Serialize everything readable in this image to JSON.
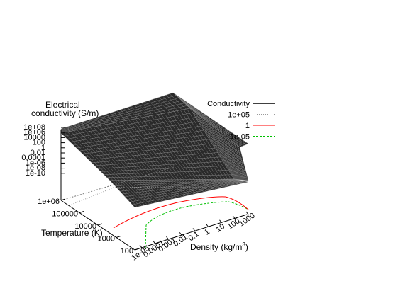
{
  "chart_data": {
    "type": "surface",
    "zlabel_line1": "Electrical",
    "zlabel_line2": "conductivity (S/m)",
    "ylabel": "Temperature (K)",
    "xlabel_prefix": "Density (kg/m",
    "xlabel_sup": "3",
    "xlabel_suffix": ")",
    "log_axes": true,
    "z_ticks": [
      "1e+08",
      "1e+06",
      "10000",
      "100",
      "1",
      "0.01",
      "0.0001",
      "1e-06",
      "1e-08",
      "1e-10"
    ],
    "y_ticks": [
      "1e+06",
      "100000",
      "10000",
      "1000",
      "100"
    ],
    "x_ticks": [
      "1e-05",
      "0.0001",
      "0.001",
      "0.01",
      "0.1",
      "1",
      "10",
      "100",
      "1000"
    ],
    "zlim": [
      1e-10,
      100000000.0
    ],
    "ylim": [
      100,
      1000000
    ],
    "xlim": [
      1e-05,
      1000
    ],
    "legend_placement": "top-right",
    "legend": [
      {
        "name": "Conductivity",
        "color": "#000000",
        "style": "solid"
      },
      {
        "name": "1e+05",
        "color": "#9a9a9a",
        "style": "dotted"
      },
      {
        "name": "1",
        "color": "#ff0000",
        "style": "solid"
      },
      {
        "name": "1e-05",
        "color": "#00c000",
        "style": "dashed"
      }
    ]
  }
}
